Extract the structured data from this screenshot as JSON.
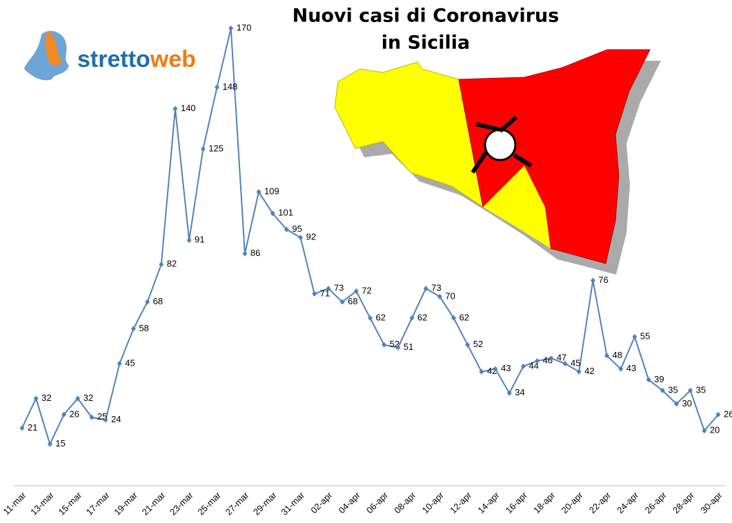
{
  "logo": {
    "first": "stretto",
    "second": "web"
  },
  "chart_data": {
    "type": "line",
    "title": [
      "Nuovi casi di Coronavirus",
      "in Sicilia"
    ],
    "categories": [
      "11-mar",
      null,
      "13-mar",
      null,
      "15-mar",
      null,
      "17-mar",
      null,
      "19-mar",
      null,
      "21-mar",
      null,
      "23-mar",
      null,
      "25-mar",
      null,
      "27-mar",
      null,
      "29-mar",
      null,
      "31-mar",
      null,
      "02-apr",
      null,
      "04-apr",
      null,
      "06-apr",
      null,
      "08-apr",
      null,
      "10-apr",
      null,
      "12-apr",
      null,
      "14-apr",
      null,
      "16-apr",
      null,
      "18-apr",
      null,
      "20-apr",
      null,
      "22-apr",
      null,
      "24-apr",
      null,
      "26-apr",
      null,
      "28-apr",
      null,
      "30-apr"
    ],
    "values": [
      21,
      32,
      15,
      26,
      32,
      25,
      24,
      45,
      58,
      68,
      82,
      140,
      91,
      125,
      148,
      170,
      86,
      109,
      101,
      95,
      92,
      71,
      73,
      68,
      72,
      62,
      52,
      51,
      62,
      73,
      70,
      62,
      52,
      42,
      43,
      34,
      44,
      46,
      47,
      45,
      42,
      76,
      48,
      43,
      55,
      39,
      35,
      30,
      35,
      20,
      26
    ],
    "color": "#4f81bd",
    "ylim": [
      0,
      170
    ]
  }
}
